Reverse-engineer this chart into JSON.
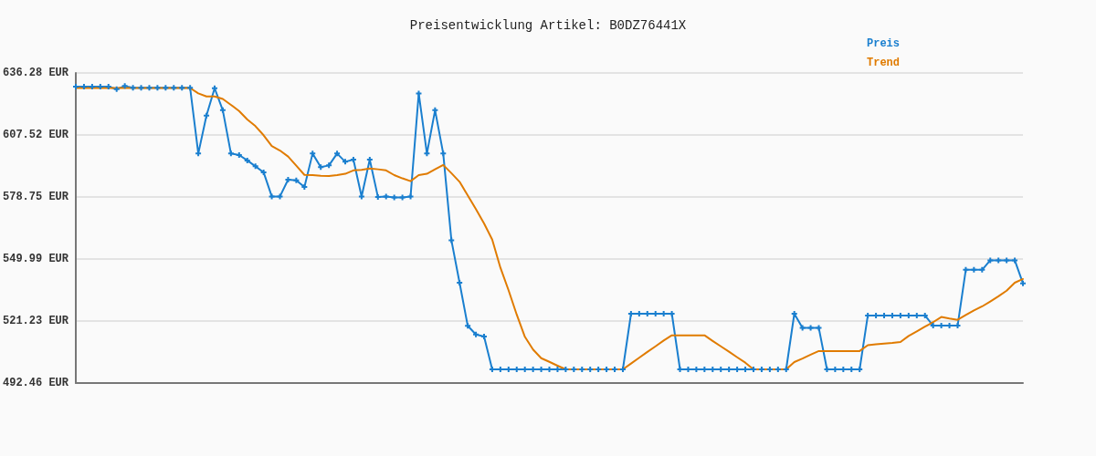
{
  "chart_data": {
    "type": "line",
    "title": "Preisentwicklung Artikel: B0DZ76441X",
    "categories": [
      null,
      null,
      null,
      null,
      null,
      null,
      null,
      null,
      null,
      null,
      null,
      null,
      null,
      null,
      null,
      null,
      null,
      null,
      null,
      null,
      null,
      null,
      null,
      null,
      null,
      null,
      null,
      null,
      null,
      null,
      null,
      null,
      null,
      null,
      null,
      null,
      null,
      null,
      null,
      null,
      null,
      null,
      null,
      null,
      null,
      null,
      null,
      null,
      null,
      null,
      null,
      null,
      null,
      null,
      null,
      null,
      null,
      null,
      null,
      null,
      null,
      null,
      null,
      null,
      null,
      null,
      null,
      null,
      null,
      null,
      null,
      null,
      null,
      null,
      null,
      null,
      null,
      null,
      null,
      null,
      null,
      null,
      null,
      null,
      null,
      null,
      null,
      null,
      null,
      null,
      null,
      null,
      null,
      null,
      null,
      null,
      null,
      null,
      null,
      null,
      null,
      null,
      null,
      null,
      null,
      null,
      null,
      null,
      null,
      null,
      null,
      null,
      null,
      null,
      null,
      null,
      null
    ],
    "series": [
      {
        "name": "Preis",
        "color": "#1a7fcf",
        "marker": "cross",
        "values": [
          629.9,
          629.9,
          629.9,
          629.9,
          629.9,
          628.8,
          630.2,
          629.4,
          629.4,
          629.4,
          629.4,
          629.4,
          629.4,
          629.4,
          629.4,
          598.9,
          616.5,
          629.2,
          619.0,
          598.9,
          598.2,
          595.7,
          593.0,
          590.2,
          579.0,
          579.0,
          586.8,
          586.5,
          583.4,
          598.9,
          592.6,
          593.4,
          598.9,
          595.1,
          596.1,
          579.0,
          596.1,
          578.8,
          579.0,
          578.5,
          578.5,
          579.0,
          626.8,
          598.9,
          619.0,
          598.9,
          558.7,
          539.0,
          519.0,
          515.0,
          514.0,
          498.8,
          498.8,
          498.8,
          498.8,
          498.8,
          498.8,
          498.8,
          498.8,
          498.8,
          498.8,
          498.8,
          498.8,
          498.8,
          498.8,
          498.8,
          498.8,
          498.8,
          524.6,
          524.6,
          524.6,
          524.6,
          524.6,
          524.6,
          498.8,
          498.8,
          498.8,
          498.8,
          498.8,
          498.8,
          498.8,
          498.8,
          498.8,
          498.8,
          498.8,
          498.8,
          498.8,
          498.8,
          524.6,
          518.0,
          518.0,
          518.0,
          498.8,
          498.8,
          498.8,
          498.8,
          498.8,
          523.8,
          523.8,
          523.8,
          523.8,
          523.8,
          523.8,
          523.8,
          523.8,
          519.1,
          519.1,
          519.1,
          519.1,
          545.0,
          545.0,
          545.0,
          549.4,
          549.4,
          549.4,
          549.4,
          538.7
        ]
      },
      {
        "name": "Trend",
        "color": "#e07b00",
        "values": [
          629.3,
          629.3,
          629.3,
          629.3,
          629.3,
          629.3,
          629.3,
          629.3,
          629.3,
          629.3,
          629.3,
          629.3,
          629.3,
          629.3,
          629.3,
          626.8,
          625.4,
          625.4,
          624.2,
          621.5,
          618.6,
          614.7,
          611.6,
          607.4,
          602.4,
          600.3,
          597.5,
          593.3,
          589.0,
          588.9,
          588.6,
          588.5,
          588.9,
          589.5,
          591.1,
          591.3,
          592.0,
          591.6,
          591.1,
          588.9,
          587.4,
          586.1,
          588.9,
          589.5,
          591.6,
          593.6,
          589.8,
          585.8,
          579.5,
          573.1,
          566.5,
          559.0,
          546.0,
          535.5,
          524.2,
          513.9,
          508.0,
          504.0,
          502.3,
          500.5,
          498.8,
          498.8,
          498.8,
          498.8,
          498.8,
          498.8,
          498.8,
          498.8,
          501.5,
          504.2,
          506.9,
          509.5,
          512.2,
          514.6,
          514.6,
          514.6,
          514.6,
          514.6,
          512.0,
          509.5,
          507.0,
          504.4,
          501.9,
          498.8,
          498.8,
          498.8,
          498.8,
          498.8,
          502.2,
          503.8,
          505.6,
          507.3,
          507.3,
          507.3,
          507.3,
          507.3,
          507.3,
          510.0,
          510.4,
          510.8,
          511.1,
          511.5,
          514.3,
          516.4,
          518.6,
          520.7,
          523.1,
          522.4,
          521.8,
          524.0,
          526.1,
          528.0,
          530.3,
          532.7,
          535.3,
          539.0,
          540.7
        ]
      }
    ],
    "ylim": [
      492.46,
      636.28
    ],
    "yticks": [
      {
        "value": 492.46,
        "label": "492.46 EUR"
      },
      {
        "value": 521.23,
        "label": "521.23 EUR"
      },
      {
        "value": 549.99,
        "label": "549.99 EUR"
      },
      {
        "value": 578.75,
        "label": "578.75 EUR"
      },
      {
        "value": 607.52,
        "label": "607.52 EUR"
      },
      {
        "value": 636.28,
        "label": "636.28 EUR"
      }
    ],
    "grid": "y",
    "legend": "top right",
    "tick_labels": "y"
  }
}
